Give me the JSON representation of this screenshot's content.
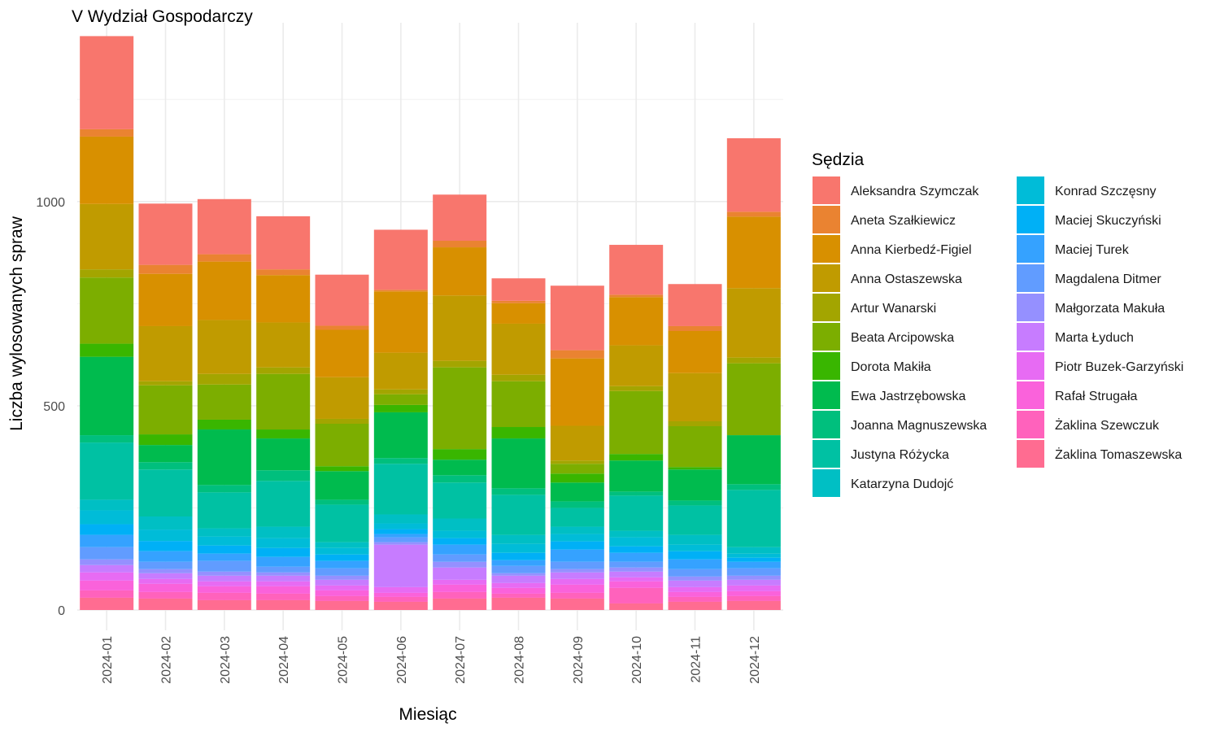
{
  "chart_data": {
    "type": "bar",
    "stacked": true,
    "title": "V Wydział Gospodarczy",
    "xlabel": "Miesiąc",
    "ylabel": "Liczba wylosowanych spraw",
    "ylim": [
      0,
      1400
    ],
    "yticks": [
      0,
      500,
      1000
    ],
    "grid": true,
    "legend_title": "Sędzia",
    "legend_position": "right",
    "categories": [
      "2024-01",
      "2024-02",
      "2024-03",
      "2024-04",
      "2024-05",
      "2024-06",
      "2024-07",
      "2024-08",
      "2024-09",
      "2024-10",
      "2024-11",
      "2024-12"
    ],
    "series": [
      {
        "name": "Aleksandra Szymczak",
        "color": "#F8766D",
        "values": [
          228,
          150,
          135,
          130,
          125,
          147,
          113,
          55,
          158,
          122,
          103,
          180
        ]
      },
      {
        "name": "Aneta Szałkiewicz",
        "color": "#EA8331",
        "values": [
          18,
          22,
          18,
          14,
          10,
          4,
          16,
          6,
          20,
          6,
          12,
          12
        ]
      },
      {
        "name": "Anna Kierbedź-Figiel",
        "color": "#D89000",
        "values": [
          165,
          128,
          143,
          116,
          116,
          150,
          118,
          50,
          165,
          118,
          103,
          175
        ]
      },
      {
        "name": "Anna Ostaszewska",
        "color": "#C09B00",
        "values": [
          160,
          135,
          132,
          110,
          102,
          90,
          160,
          125,
          85,
          100,
          118,
          170
        ]
      },
      {
        "name": "Artur Wanarski",
        "color": "#A3A500",
        "values": [
          20,
          10,
          26,
          16,
          12,
          12,
          16,
          16,
          8,
          12,
          12,
          14
        ]
      },
      {
        "name": "Beata Arcipowska",
        "color": "#7CAE00",
        "values": [
          162,
          120,
          86,
          136,
          104,
          26,
          200,
          112,
          24,
          154,
          100,
          176
        ]
      },
      {
        "name": "Dorota Makiła",
        "color": "#39B600",
        "values": [
          32,
          26,
          24,
          22,
          12,
          18,
          26,
          28,
          22,
          16,
          6,
          0
        ]
      },
      {
        "name": "Ewa Jastrzębowska",
        "color": "#00BB4E",
        "values": [
          192,
          42,
          136,
          78,
          70,
          112,
          38,
          122,
          46,
          76,
          76,
          120
        ]
      },
      {
        "name": "Joanna Magnuszewska",
        "color": "#00BF7D",
        "values": [
          18,
          18,
          18,
          26,
          12,
          14,
          18,
          16,
          16,
          10,
          12,
          14
        ]
      },
      {
        "name": "Justyna Różycka",
        "color": "#00C1A3",
        "values": [
          140,
          115,
          88,
          112,
          92,
          124,
          88,
          98,
          46,
          86,
          72,
          140
        ]
      },
      {
        "name": "Katarzyna Dudojć",
        "color": "#00BFC4",
        "values": [
          26,
          32,
          20,
          28,
          14,
          22,
          30,
          22,
          18,
          16,
          24,
          16
        ]
      },
      {
        "name": "Konrad Szczęsny",
        "color": "#00BCD8",
        "values": [
          34,
          28,
          22,
          24,
          16,
          14,
          18,
          22,
          18,
          22,
          16,
          10
        ]
      },
      {
        "name": "Maciej Skuczyński",
        "color": "#00B0F6",
        "values": [
          26,
          25,
          20,
          22,
          16,
          12,
          16,
          18,
          20,
          16,
          20,
          10
        ]
      },
      {
        "name": "Maciej Turek",
        "color": "#35A2FF",
        "values": [
          30,
          26,
          18,
          24,
          18,
          8,
          24,
          14,
          30,
          22,
          24,
          16
        ]
      },
      {
        "name": "Magdalena Ditmer",
        "color": "#619CFF",
        "values": [
          30,
          18,
          26,
          14,
          18,
          12,
          18,
          18,
          18,
          14,
          18,
          18
        ]
      },
      {
        "name": "Małgorzata Makuła",
        "color": "#9590FF",
        "values": [
          14,
          10,
          10,
          8,
          10,
          6,
          14,
          6,
          8,
          10,
          10,
          10
        ]
      },
      {
        "name": "Marta Łyduch",
        "color": "#C77CFF",
        "values": [
          18,
          14,
          14,
          14,
          14,
          104,
          30,
          18,
          16,
          14,
          16,
          14
        ]
      },
      {
        "name": "Piotr Buzek-Garzyński",
        "color": "#E76BF3",
        "values": [
          20,
          12,
          12,
          12,
          12,
          14,
          12,
          12,
          14,
          10,
          12,
          14
        ]
      },
      {
        "name": "Rafał Strugała",
        "color": "#FA62DB",
        "values": [
          24,
          20,
          16,
          18,
          14,
          10,
          18,
          14,
          20,
          16,
          12,
          12
        ]
      },
      {
        "name": "Żaklina Szewczuk",
        "color": "#FF62BC",
        "values": [
          18,
          16,
          18,
          16,
          12,
          12,
          16,
          10,
          14,
          38,
          12,
          12
        ]
      },
      {
        "name": "Żaklina Tomaszewska",
        "color": "#FF6C91",
        "values": [
          30,
          28,
          24,
          24,
          22,
          20,
          28,
          30,
          28,
          16,
          20,
          22
        ]
      }
    ]
  }
}
